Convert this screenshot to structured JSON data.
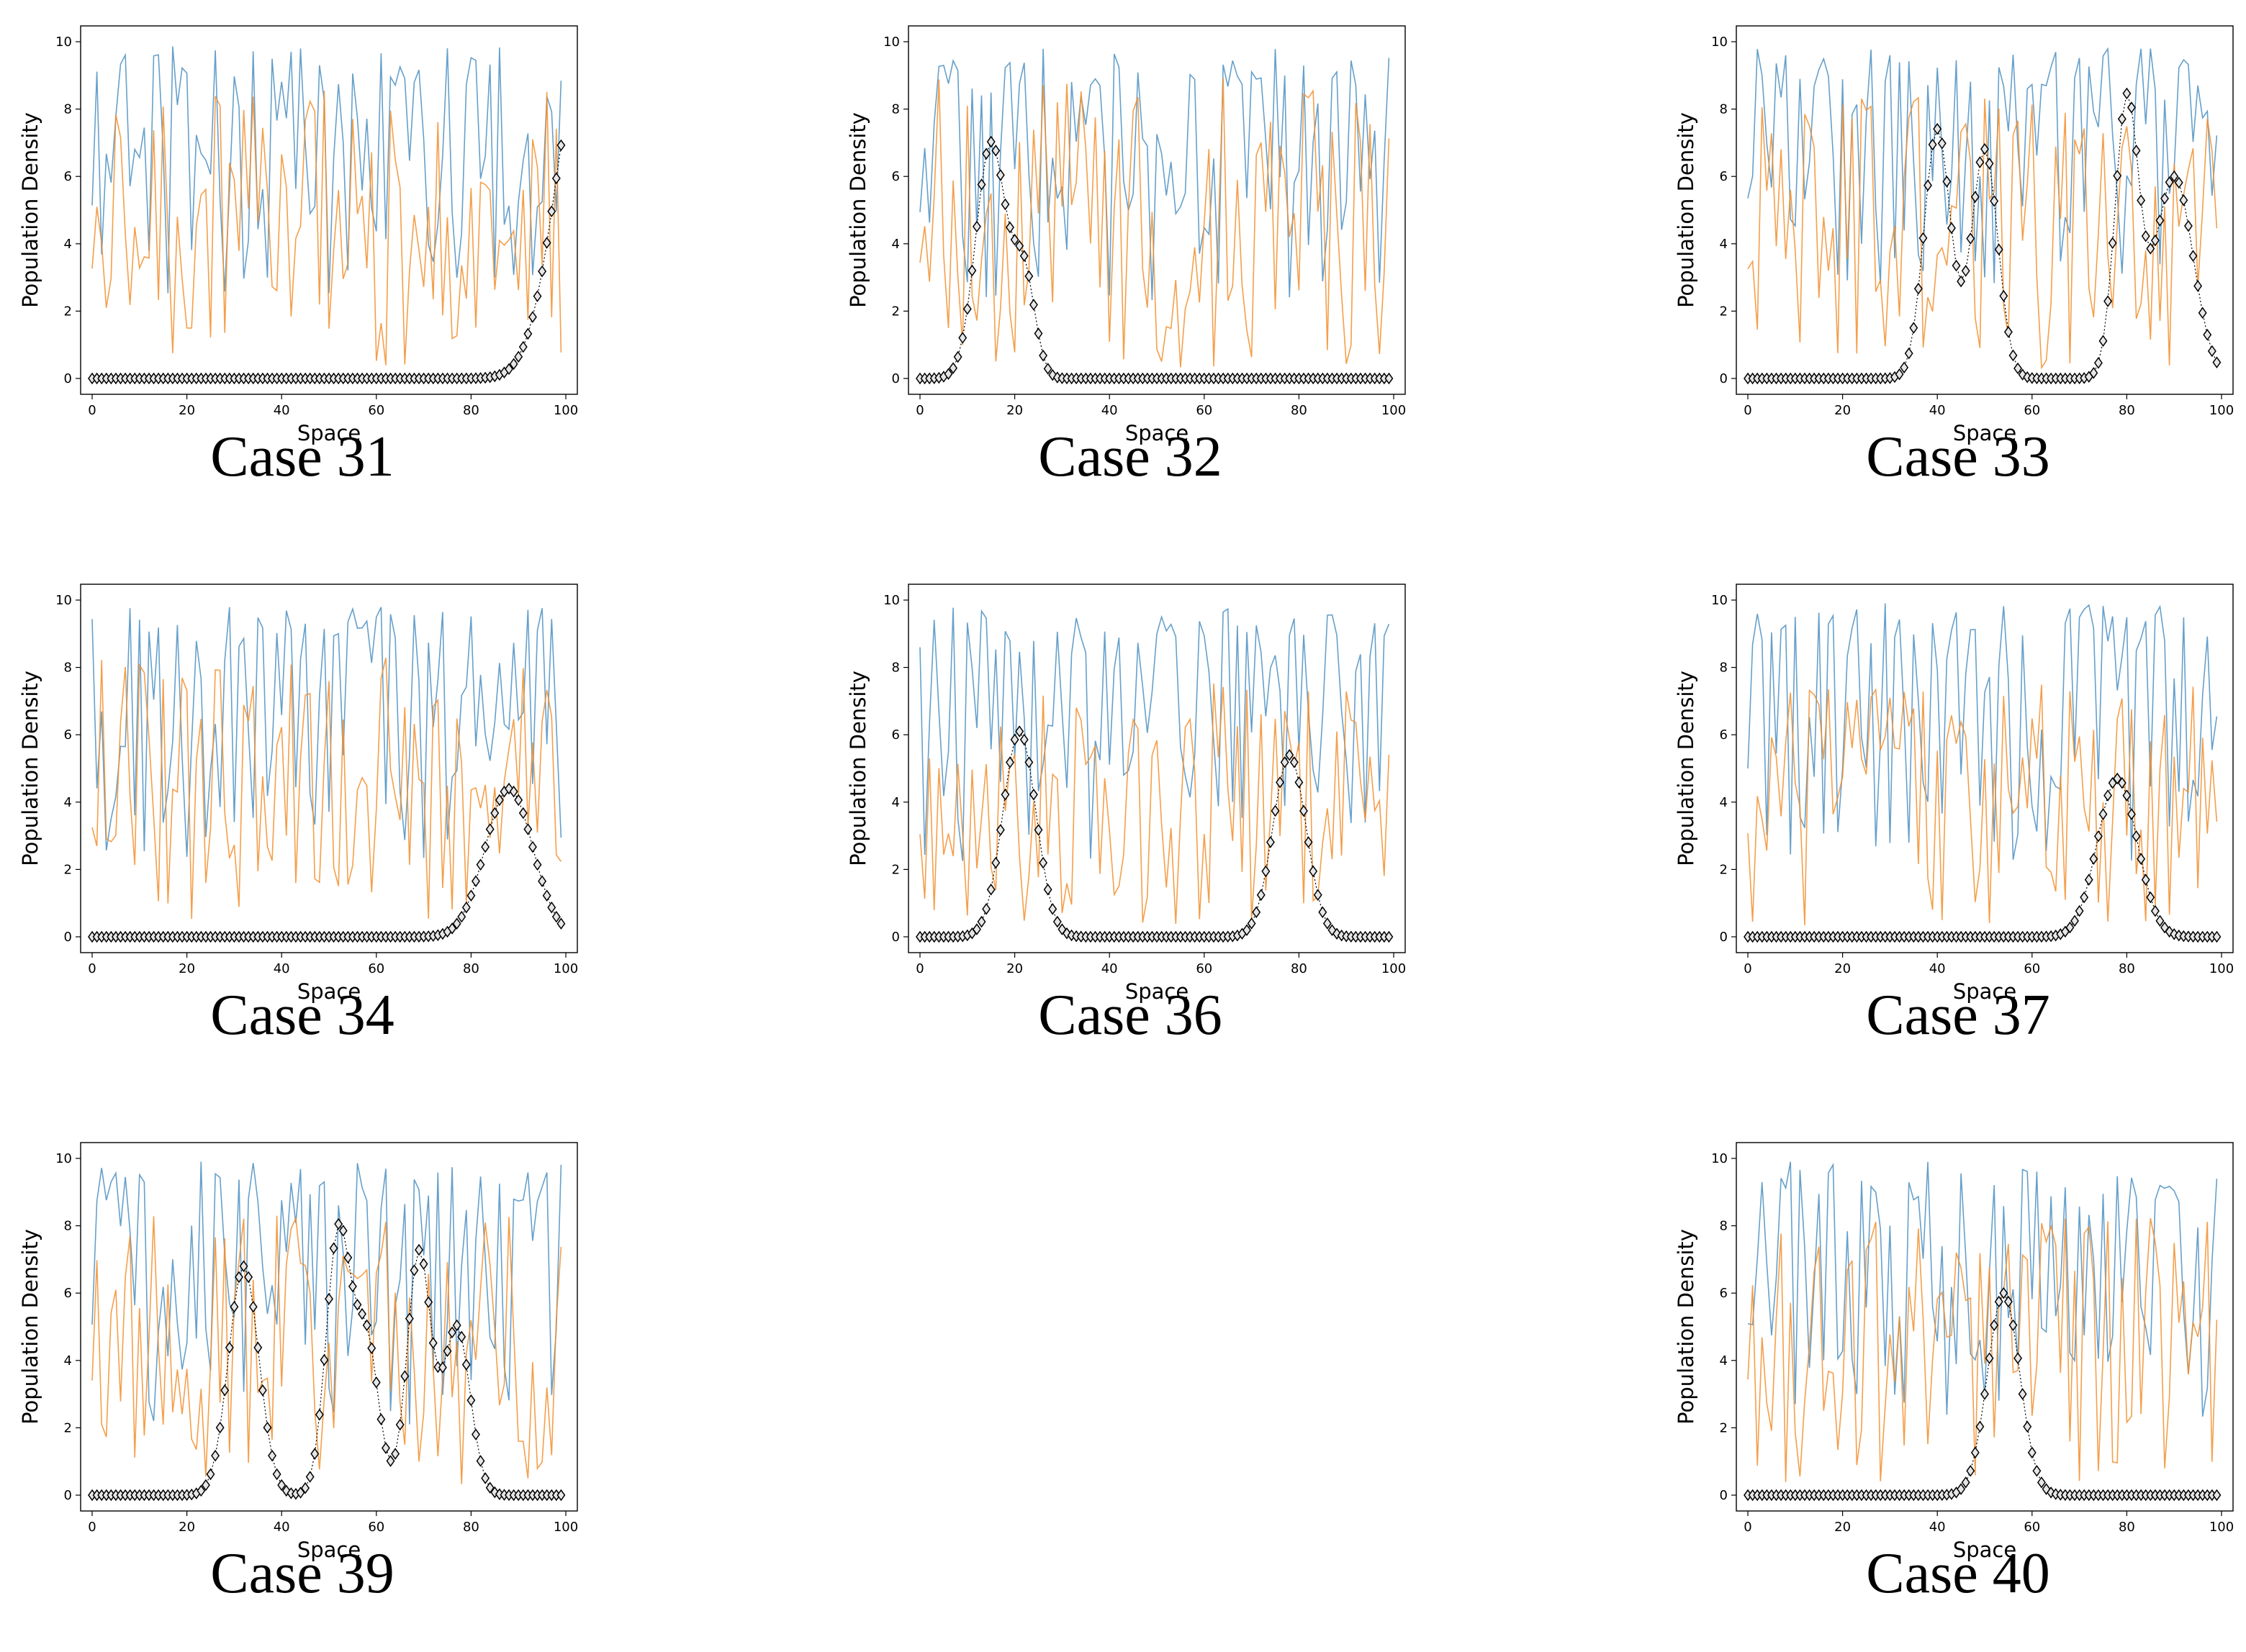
{
  "colors": {
    "blue": "#4b8fc2",
    "orange": "#f28e2b",
    "marker": "#000000",
    "marker_fill": "#e6e6e6"
  },
  "chart_data": [
    {
      "type": "line",
      "case_label": "Case 31",
      "xlabel": "Space",
      "ylabel": "Population Density",
      "xlim": [
        0,
        100
      ],
      "ylim": [
        0,
        10
      ],
      "xticks": [
        0,
        20,
        40,
        60,
        80,
        100
      ],
      "yticks": [
        0,
        2,
        4,
        6,
        8,
        10
      ],
      "series": [
        {
          "name": "blue",
          "seed": 311,
          "low": 2.5,
          "high": 9.9
        },
        {
          "name": "orange",
          "seed": 312,
          "low": 0.3,
          "high": 8.6
        },
        {
          "name": "markers",
          "peaks": [
            {
              "center": 104,
              "amp": 9.8,
              "width": 6
            }
          ]
        }
      ]
    },
    {
      "type": "line",
      "case_label": "Case 32",
      "xlabel": "Space",
      "ylabel": "Population Density",
      "xlim": [
        0,
        100
      ],
      "ylim": [
        0,
        10
      ],
      "xticks": [
        0,
        20,
        40,
        60,
        80,
        100
      ],
      "yticks": [
        0,
        2,
        4,
        6,
        8,
        10
      ],
      "series": [
        {
          "name": "blue",
          "seed": 321,
          "low": 2.2,
          "high": 9.8
        },
        {
          "name": "orange",
          "seed": 322,
          "low": 0.3,
          "high": 9.0
        },
        {
          "name": "markers",
          "peaks": [
            {
              "center": 15,
              "amp": 7.0,
              "width": 3.2
            },
            {
              "center": 22,
              "amp": 3.0,
              "width": 2.3
            }
          ]
        }
      ]
    },
    {
      "type": "line",
      "case_label": "Case 33",
      "xlabel": "Space",
      "ylabel": "Population Density",
      "xlim": [
        0,
        100
      ],
      "ylim": [
        0,
        10
      ],
      "xticks": [
        0,
        20,
        40,
        60,
        80,
        100
      ],
      "yticks": [
        0,
        2,
        4,
        6,
        8,
        10
      ],
      "series": [
        {
          "name": "blue",
          "seed": 331,
          "low": 2.8,
          "high": 9.8
        },
        {
          "name": "orange",
          "seed": 332,
          "low": 0.3,
          "high": 8.4
        },
        {
          "name": "markers",
          "peaks": [
            {
              "center": 40,
              "amp": 7.4,
              "width": 2.8
            },
            {
              "center": 50,
              "amp": 6.8,
              "width": 2.8
            },
            {
              "center": 80,
              "amp": 8.2,
              "width": 2.5
            },
            {
              "center": 90,
              "amp": 6.0,
              "width": 4
            }
          ]
        }
      ]
    },
    {
      "type": "line",
      "case_label": "Case 34",
      "xlabel": "Space",
      "ylabel": "Population Density",
      "xlim": [
        0,
        100
      ],
      "ylim": [
        0,
        10
      ],
      "xticks": [
        0,
        20,
        40,
        60,
        80,
        100
      ],
      "yticks": [
        0,
        2,
        4,
        6,
        8,
        10
      ],
      "series": [
        {
          "name": "blue",
          "seed": 341,
          "low": 2.2,
          "high": 9.8
        },
        {
          "name": "orange",
          "seed": 342,
          "low": 0.3,
          "high": 8.3
        },
        {
          "name": "markers",
          "peaks": [
            {
              "center": 88,
              "amp": 4.4,
              "width": 5
            }
          ]
        }
      ]
    },
    {
      "type": "line",
      "case_label": "Case 36",
      "xlabel": "Space",
      "ylabel": "Population Density",
      "xlim": [
        0,
        100
      ],
      "ylim": [
        0,
        10
      ],
      "xticks": [
        0,
        20,
        40,
        60,
        80,
        100
      ],
      "yticks": [
        0,
        2,
        4,
        6,
        8,
        10
      ],
      "series": [
        {
          "name": "blue",
          "seed": 361,
          "low": 2.2,
          "high": 9.8
        },
        {
          "name": "orange",
          "seed": 362,
          "low": 0.3,
          "high": 7.6
        },
        {
          "name": "markers",
          "peaks": [
            {
              "center": 21,
              "amp": 6.1,
              "width": 3.5
            },
            {
              "center": 78,
              "amp": 5.4,
              "width": 3.5
            }
          ]
        }
      ]
    },
    {
      "type": "line",
      "case_label": "Case 37",
      "xlabel": "Space",
      "ylabel": "Population Density",
      "xlim": [
        0,
        100
      ],
      "ylim": [
        0,
        10
      ],
      "xticks": [
        0,
        20,
        40,
        60,
        80,
        100
      ],
      "yticks": [
        0,
        2,
        4,
        6,
        8,
        10
      ],
      "series": [
        {
          "name": "blue",
          "seed": 371,
          "low": 2.0,
          "high": 9.9
        },
        {
          "name": "orange",
          "seed": 372,
          "low": 0.3,
          "high": 7.6
        },
        {
          "name": "markers",
          "peaks": [
            {
              "center": 78,
              "amp": 4.7,
              "width": 4.2
            }
          ]
        }
      ]
    },
    {
      "type": "line",
      "case_label": "Case 39",
      "xlabel": "Space",
      "ylabel": "Population Density",
      "xlim": [
        0,
        100
      ],
      "ylim": [
        0,
        10
      ],
      "xticks": [
        0,
        20,
        40,
        60,
        80,
        100
      ],
      "yticks": [
        0,
        2,
        4,
        6,
        8,
        10
      ],
      "series": [
        {
          "name": "blue",
          "seed": 391,
          "low": 2.0,
          "high": 9.9
        },
        {
          "name": "orange",
          "seed": 392,
          "low": 0.3,
          "high": 8.3
        },
        {
          "name": "markers",
          "peaks": [
            {
              "center": 32,
              "amp": 6.8,
              "width": 3.2
            },
            {
              "center": 52,
              "amp": 7.8,
              "width": 2.6
            },
            {
              "center": 58,
              "amp": 4.5,
              "width": 2.5
            },
            {
              "center": 69,
              "amp": 7.2,
              "width": 2.5
            },
            {
              "center": 77,
              "amp": 5.0,
              "width": 2.8
            }
          ]
        }
      ]
    },
    {
      "type": "line",
      "case_label": "Case 40",
      "xlabel": "Space",
      "ylabel": "Population Density",
      "xlim": [
        0,
        100
      ],
      "ylim": [
        0,
        10
      ],
      "xticks": [
        0,
        20,
        40,
        60,
        80,
        100
      ],
      "yticks": [
        0,
        2,
        4,
        6,
        8,
        10
      ],
      "series": [
        {
          "name": "blue",
          "seed": 401,
          "low": 2.0,
          "high": 9.9
        },
        {
          "name": "orange",
          "seed": 402,
          "low": 0.3,
          "high": 8.3
        },
        {
          "name": "markers",
          "peaks": [
            {
              "center": 54,
              "amp": 6.0,
              "width": 3.4
            }
          ]
        }
      ]
    }
  ]
}
